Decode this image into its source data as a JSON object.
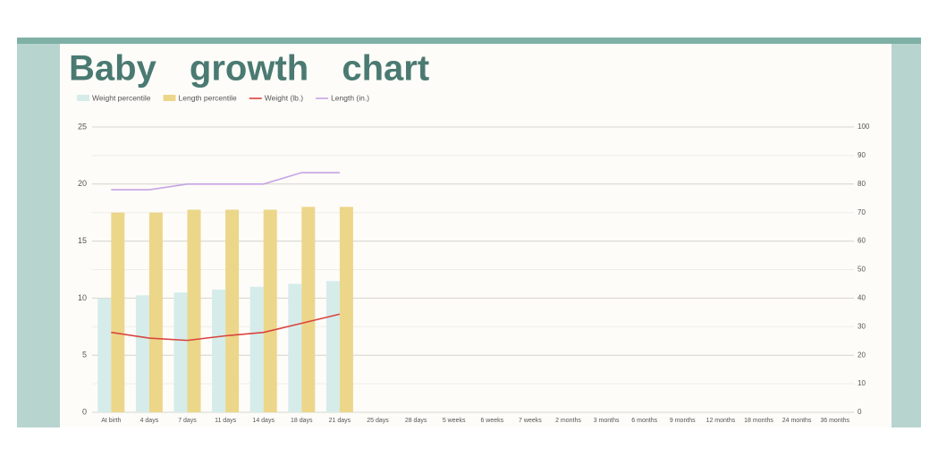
{
  "chart_data": {
    "type": "combo",
    "title": "Baby growth chart",
    "categories": [
      "At birth",
      "4 days",
      "7 days",
      "11 days",
      "14 days",
      "18 days",
      "21 days",
      "25 days",
      "28 days",
      "5 weeks",
      "6 weeks",
      "7 weeks",
      "2 months",
      "3 months",
      "6 months",
      "9 months",
      "12 months",
      "18 months",
      "24 months",
      "36 months"
    ],
    "series": [
      {
        "name": "Weight percentile",
        "type": "bar",
        "axis": "y2",
        "color": "#d5ecea",
        "values": [
          40,
          41,
          42,
          43,
          44,
          45,
          46,
          null,
          null,
          null,
          null,
          null,
          null,
          null,
          null,
          null,
          null,
          null,
          null,
          null
        ]
      },
      {
        "name": "Length percentile",
        "type": "bar",
        "axis": "y2",
        "color": "#ecd68a",
        "values": [
          70,
          70,
          71,
          71,
          71,
          72,
          72,
          null,
          null,
          null,
          null,
          null,
          null,
          null,
          null,
          null,
          null,
          null,
          null,
          null
        ]
      },
      {
        "name": "Weight (lb.)",
        "type": "line",
        "color": "#d9443f",
        "values": [
          7,
          6.5,
          6.3,
          6.7,
          7,
          7.8,
          8.6,
          null,
          null,
          null,
          null,
          null,
          null,
          null,
          null,
          null,
          null,
          null,
          null,
          null
        ]
      },
      {
        "name": "Length (in.)",
        "type": "line",
        "color": "#c7a3e6",
        "values": [
          19.5,
          19.5,
          20,
          20,
          20,
          21,
          21,
          null,
          null,
          null,
          null,
          null,
          null,
          null,
          null,
          null,
          null,
          null,
          null,
          null
        ]
      }
    ],
    "ylim": [
      0,
      25
    ],
    "yticks": [
      0,
      5,
      10,
      15,
      20,
      25
    ],
    "y2lim": [
      0,
      100
    ],
    "y2ticks": [
      0,
      10,
      20,
      30,
      40,
      50,
      60,
      70,
      80,
      90,
      100
    ],
    "grid": true,
    "legend": "top-left"
  }
}
